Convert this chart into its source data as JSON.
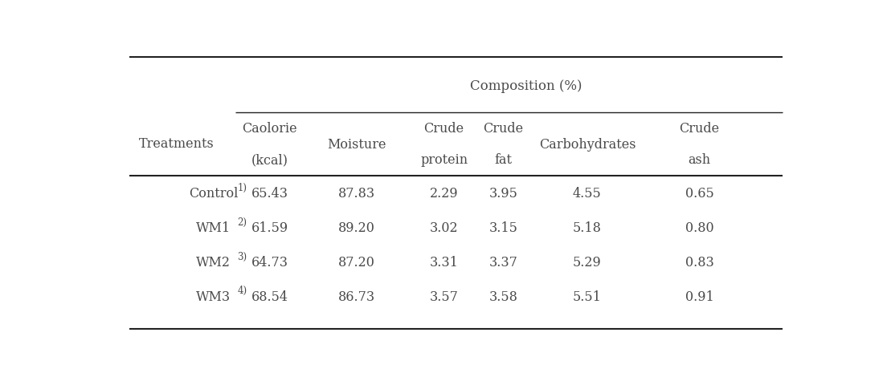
{
  "title": "Composition (%)",
  "treatment_labels": [
    "Control",
    "WM1",
    "WM2",
    "WM3"
  ],
  "superscripts": [
    "1)",
    "2)",
    "3)",
    "4)"
  ],
  "col_headers": [
    [
      "Caolorie",
      "(kcal)"
    ],
    [
      "Moisture",
      ""
    ],
    [
      "Crude",
      "protein"
    ],
    [
      "Crude",
      "fat"
    ],
    [
      "Carbohydrates",
      ""
    ],
    [
      "Crude",
      "ash"
    ]
  ],
  "data_rows": [
    [
      "65.43",
      "87.83",
      "2.29",
      "3.95",
      "4.55",
      "0.65"
    ],
    [
      "61.59",
      "89.20",
      "3.02",
      "3.15",
      "5.18",
      "0.80"
    ],
    [
      "64.73",
      "87.20",
      "3.31",
      "3.37",
      "5.29",
      "0.83"
    ],
    [
      "68.54",
      "86.73",
      "3.57",
      "3.58",
      "5.51",
      "0.91"
    ]
  ],
  "bg_color": "#ffffff",
  "text_color": "#4a4a4a",
  "line_color": "#222222",
  "font_size": 11.5,
  "small_font_size": 8.5,
  "title_font_size": 12
}
